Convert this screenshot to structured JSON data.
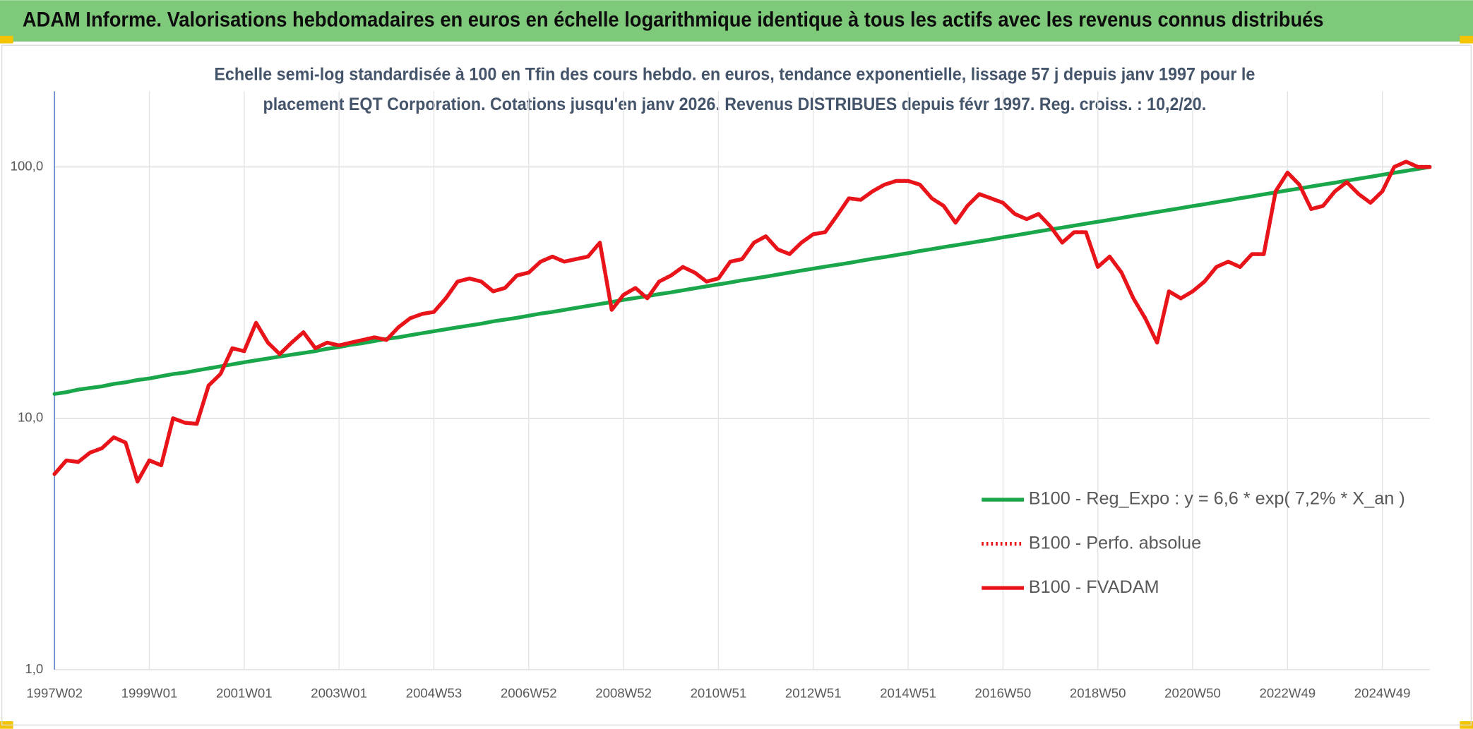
{
  "chart_data": {
    "type": "line",
    "title": "ADAM Informe. Valorisations hebdomadaires en euros en échelle logarithmique identique à tous les actifs avec les revenus connus distribués",
    "subtitle": [
      "Echelle semi-log standardisée à 100 en Tfin des cours hebdo. en euros, tendance exponentielle, lissage 57 j depuis janv 1997 pour le",
      "placement EQT Corporation. Cotations jusqu'en janv 2026. Revenus DISTRIBUES depuis févr 1997. Reg. croiss. : 10,2/20."
    ],
    "log_scale": true,
    "grid": true,
    "legend": "right",
    "ylim": [
      1,
      200
    ],
    "yticks": [
      {
        "value": 1,
        "label": "1,0"
      },
      {
        "value": 10,
        "label": "10,0"
      },
      {
        "value": 100,
        "label": "100,0"
      }
    ],
    "categories": [
      "1997W02",
      null,
      null,
      null,
      null,
      null,
      null,
      null,
      "1999W01",
      null,
      null,
      null,
      null,
      null,
      null,
      null,
      "2001W01",
      null,
      null,
      null,
      null,
      null,
      null,
      null,
      "2003W01",
      null,
      null,
      null,
      null,
      null,
      null,
      null,
      "2004W53",
      null,
      null,
      null,
      null,
      null,
      null,
      null,
      "2006W52",
      null,
      null,
      null,
      null,
      null,
      null,
      null,
      "2008W52",
      null,
      null,
      null,
      null,
      null,
      null,
      null,
      "2010W51",
      null,
      null,
      null,
      null,
      null,
      null,
      null,
      "2012W51",
      null,
      null,
      null,
      null,
      null,
      null,
      null,
      "2014W51",
      null,
      null,
      null,
      null,
      null,
      null,
      null,
      "2016W50",
      null,
      null,
      null,
      null,
      null,
      null,
      null,
      "2018W50",
      null,
      null,
      null,
      null,
      null,
      null,
      null,
      "2020W50",
      null,
      null,
      null,
      null,
      null,
      null,
      null,
      "2022W49",
      null,
      null,
      null,
      null,
      null,
      null,
      null,
      "2024W49",
      null,
      null,
      null,
      null
    ],
    "series": [
      {
        "name": "B100 - Reg_Expo : y = 6,6 * exp( 7,2% *  X_an )",
        "color": "#1aa64a",
        "dash": "solid",
        "values": [
          12.5,
          12.7,
          13.0,
          13.2,
          13.4,
          13.7,
          13.9,
          14.2,
          14.4,
          14.7,
          15.0,
          15.2,
          15.5,
          15.8,
          16.1,
          16.4,
          16.7,
          17.0,
          17.3,
          17.6,
          17.9,
          18.2,
          18.5,
          18.9,
          19.2,
          19.6,
          19.9,
          20.3,
          20.7,
          21.0,
          21.4,
          21.8,
          22.2,
          22.6,
          23.0,
          23.4,
          23.8,
          24.3,
          24.7,
          25.1,
          25.6,
          26.1,
          26.5,
          27.0,
          27.5,
          28.0,
          28.5,
          29.0,
          29.6,
          30.1,
          30.6,
          31.2,
          31.7,
          32.3,
          32.9,
          33.5,
          34.1,
          34.7,
          35.4,
          36.0,
          36.6,
          37.3,
          38.0,
          38.7,
          39.4,
          40.1,
          40.8,
          41.5,
          42.3,
          43.1,
          43.8,
          44.6,
          45.4,
          46.3,
          47.1,
          48.0,
          48.8,
          49.7,
          50.6,
          51.5,
          52.5,
          53.4,
          54.4,
          55.4,
          56.4,
          57.4,
          58.4,
          59.5,
          60.5,
          61.6,
          62.7,
          63.9,
          65.0,
          66.2,
          67.4,
          68.6,
          69.9,
          71.1,
          72.4,
          73.7,
          75.1,
          76.4,
          77.8,
          79.2,
          80.7,
          82.1,
          83.6,
          85.1,
          86.6,
          88.2,
          89.8,
          91.4,
          93.1,
          94.8,
          96.5,
          98.2,
          100.0
        ]
      },
      {
        "name": "B100 - Perfo. absolue",
        "color": "#e8141a",
        "dash": "dotted",
        "values": [
          6.0,
          6.8,
          6.7,
          7.3,
          7.6,
          8.4,
          8.0,
          5.6,
          6.8,
          6.5,
          10.0,
          9.6,
          9.5,
          13.5,
          15,
          19,
          18.5,
          24,
          20,
          18,
          20,
          22,
          19,
          20,
          19.5,
          20,
          20.5,
          21,
          20.5,
          23,
          25,
          26,
          26.5,
          30,
          35,
          36,
          35,
          32,
          33,
          37,
          38,
          42,
          44,
          42,
          43,
          44,
          50,
          27,
          31,
          33,
          30,
          35,
          37,
          40,
          38,
          35,
          36,
          42,
          43,
          50,
          53,
          47,
          45,
          50,
          54,
          55,
          64,
          75,
          74,
          80,
          85,
          88,
          88,
          85,
          75,
          70,
          60,
          70,
          78,
          75,
          72,
          65,
          62,
          65,
          58,
          50,
          55,
          55,
          40,
          44,
          38,
          30,
          25,
          20,
          32,
          30,
          32,
          35,
          40,
          42,
          40,
          45,
          45,
          80,
          95,
          85,
          68,
          70,
          80,
          87,
          78,
          72,
          80,
          100,
          105,
          100,
          100
        ]
      },
      {
        "name": "B100 - FVADAM",
        "color": "#e8141a",
        "dash": "solid",
        "values": [
          6.0,
          6.8,
          6.7,
          7.3,
          7.6,
          8.4,
          8.0,
          5.6,
          6.8,
          6.5,
          10.0,
          9.6,
          9.5,
          13.5,
          15,
          19,
          18.5,
          24,
          20,
          18,
          20,
          22,
          19,
          20,
          19.5,
          20,
          20.5,
          21,
          20.5,
          23,
          25,
          26,
          26.5,
          30,
          35,
          36,
          35,
          32,
          33,
          37,
          38,
          42,
          44,
          42,
          43,
          44,
          50,
          27,
          31,
          33,
          30,
          35,
          37,
          40,
          38,
          35,
          36,
          42,
          43,
          50,
          53,
          47,
          45,
          50,
          54,
          55,
          64,
          75,
          74,
          80,
          85,
          88,
          88,
          85,
          75,
          70,
          60,
          70,
          78,
          75,
          72,
          65,
          62,
          65,
          58,
          50,
          55,
          55,
          40,
          44,
          38,
          30,
          25,
          20,
          32,
          30,
          32,
          35,
          40,
          42,
          40,
          45,
          45,
          80,
          95,
          85,
          68,
          70,
          80,
          87,
          78,
          72,
          80,
          100,
          105,
          100,
          100
        ]
      }
    ]
  }
}
